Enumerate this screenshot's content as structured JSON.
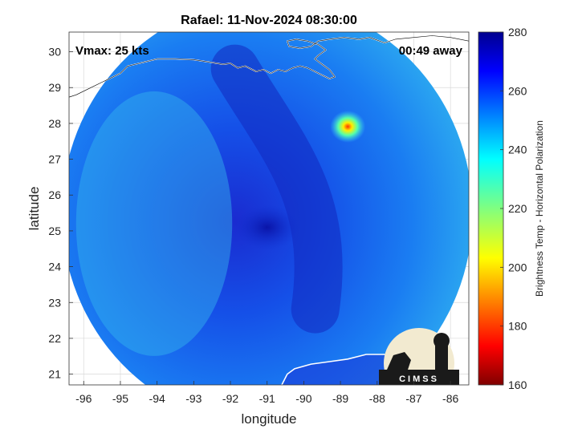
{
  "chart_data": {
    "type": "heatmap",
    "title": "Rafael: 11-Nov-2024 08:30:00",
    "xlabel": "longitude",
    "ylabel": "latitude",
    "xlim": [
      -96.4,
      -85.5
    ],
    "ylim": [
      20.7,
      30.55
    ],
    "x_ticks": [
      -96,
      -95,
      -94,
      -93,
      -92,
      -91,
      -90,
      -89,
      -88,
      -87,
      -86
    ],
    "y_ticks": [
      21,
      22,
      23,
      24,
      25,
      26,
      27,
      28,
      29,
      30
    ],
    "grid": true,
    "annotations": {
      "vmax": "Vmax: 25 kts",
      "time_away": "00:49 away"
    },
    "storm_center": {
      "lon": -91.0,
      "lat": 25.1
    },
    "hot_spot": {
      "lon": -88.8,
      "lat": 28.0
    },
    "swath": {
      "center_lon": -91.0,
      "center_lat": 25.5,
      "radius_deg": 5.6
    },
    "colorbar": {
      "label": "Brightness Temp - Horizontal Polarization",
      "range": [
        160,
        280
      ],
      "ticks": [
        160,
        180,
        200,
        220,
        240,
        260,
        280
      ],
      "colormap": "jet"
    },
    "logo": "CIMSS"
  }
}
